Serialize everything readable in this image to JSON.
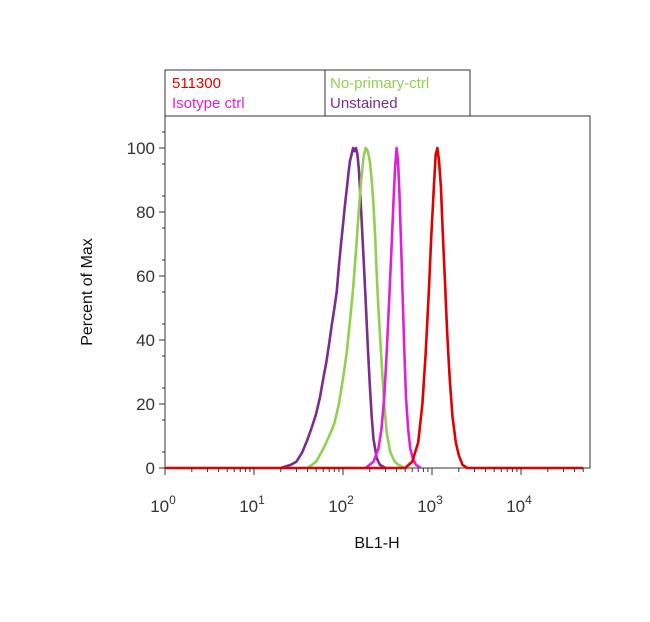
{
  "chart_data": {
    "type": "line",
    "title": "",
    "xlabel": "BL1-H",
    "ylabel": "Percent of Max",
    "xscale": "log",
    "xlim": [
      1,
      50000
    ],
    "ylim": [
      0,
      110
    ],
    "grid": false,
    "legend_placement": "top",
    "x_ticks": [
      {
        "value": 1,
        "base": "10",
        "exp": "0"
      },
      {
        "value": 10,
        "base": "10",
        "exp": "1"
      },
      {
        "value": 100,
        "base": "10",
        "exp": "2"
      },
      {
        "value": 1000,
        "base": "10",
        "exp": "3"
      },
      {
        "value": 10000,
        "base": "10",
        "exp": "4"
      }
    ],
    "y_ticks": [
      {
        "value": 0,
        "label": "0"
      },
      {
        "value": 20,
        "label": "20"
      },
      {
        "value": 40,
        "label": "40"
      },
      {
        "value": 60,
        "label": "60"
      },
      {
        "value": 80,
        "label": "80"
      },
      {
        "value": 100,
        "label": "100"
      }
    ],
    "series": [
      {
        "name": "Unstained",
        "color": "#7b2d8e",
        "x": [
          20,
          26,
          30,
          35,
          40,
          45,
          50,
          55,
          60,
          65,
          70,
          75,
          80,
          85,
          90,
          95,
          100,
          105,
          110,
          115,
          120,
          125,
          130,
          135,
          140,
          145,
          150,
          155,
          160,
          170,
          180,
          190,
          200,
          210,
          220,
          240,
          260,
          300
        ],
        "y": [
          0,
          1,
          2,
          5,
          9,
          13,
          17,
          22,
          28,
          33,
          39,
          45,
          50,
          55,
          63,
          70,
          76,
          82,
          87,
          92,
          96,
          98,
          100,
          99,
          100,
          98,
          94,
          88,
          80,
          66,
          52,
          38,
          26,
          16,
          9,
          3,
          1,
          0
        ]
      },
      {
        "name": "No-primary-ctrl",
        "color": "#8fd14f",
        "x": [
          40,
          50,
          60,
          70,
          80,
          90,
          100,
          110,
          120,
          130,
          140,
          150,
          160,
          170,
          180,
          190,
          200,
          210,
          220,
          230,
          240,
          250,
          270,
          290,
          310,
          340,
          380,
          420,
          500
        ],
        "y": [
          0,
          2,
          6,
          10,
          14,
          20,
          28,
          36,
          46,
          56,
          68,
          80,
          90,
          97,
          100,
          99,
          96,
          90,
          82,
          72,
          60,
          50,
          34,
          20,
          11,
          5,
          2,
          1,
          0
        ]
      },
      {
        "name": "Isotype ctrl",
        "color": "#e020d8",
        "x": [
          180,
          220,
          250,
          270,
          290,
          310,
          330,
          350,
          370,
          385,
          400,
          415,
          430,
          450,
          470,
          490,
          510,
          540,
          570,
          610,
          660,
          750
        ],
        "y": [
          0,
          2,
          6,
          12,
          22,
          36,
          52,
          68,
          84,
          94,
          100,
          96,
          86,
          70,
          52,
          36,
          22,
          12,
          6,
          3,
          1,
          0
        ]
      },
      {
        "name": "511300",
        "color": "#e00000",
        "x": [
          1,
          500,
          600,
          700,
          780,
          850,
          920,
          980,
          1050,
          1100,
          1150,
          1200,
          1260,
          1320,
          1400,
          1480,
          1580,
          1700,
          1850,
          2000,
          2200,
          2500,
          50000
        ],
        "y": [
          0,
          0,
          2,
          8,
          20,
          36,
          55,
          72,
          88,
          98,
          100,
          96,
          88,
          74,
          58,
          42,
          28,
          16,
          8,
          4,
          1,
          0,
          0
        ]
      }
    ]
  },
  "legend": {
    "items": [
      {
        "label": "511300",
        "color": "#e00000"
      },
      {
        "label": "No-primary-ctrl",
        "color": "#8fd14f"
      },
      {
        "label": "Isotype ctrl",
        "color": "#e020d8"
      },
      {
        "label": "Unstained",
        "color": "#7b2d8e"
      }
    ]
  }
}
